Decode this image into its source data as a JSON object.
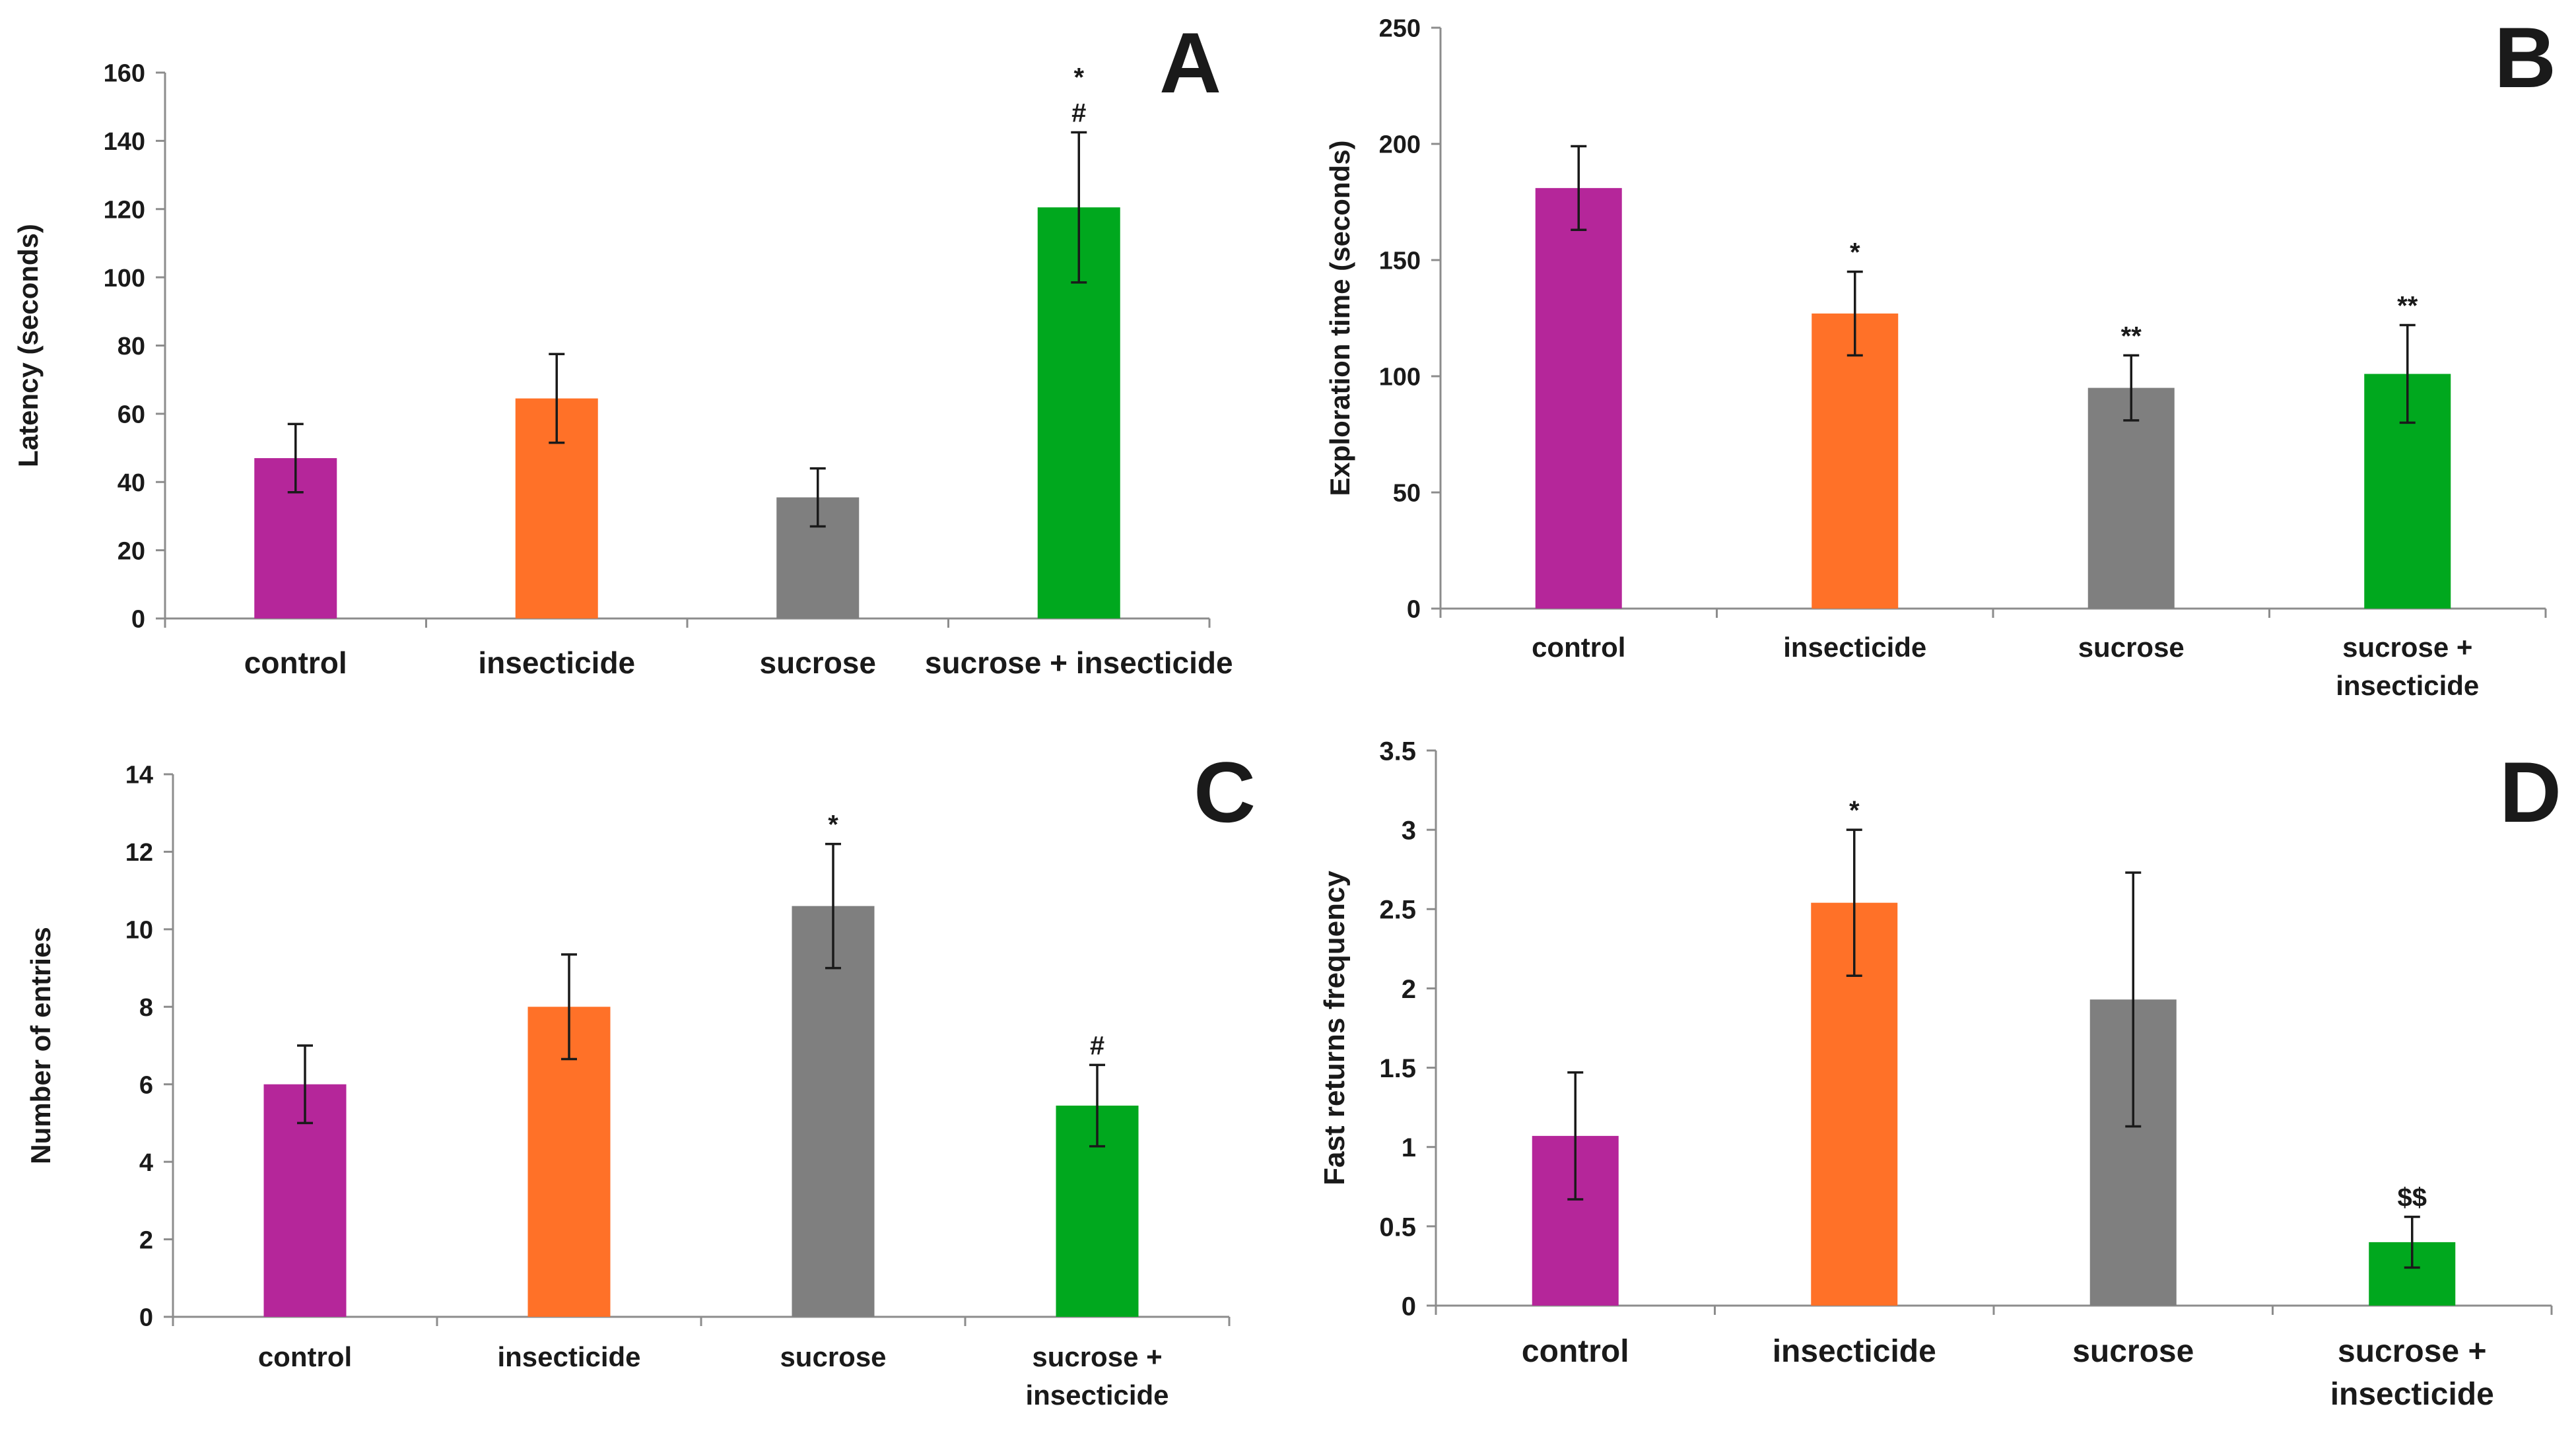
{
  "colors": {
    "control": "#B5269A",
    "insecticide": "#FF7128",
    "sucrose": "#7F7F7F",
    "sucrose_insecticide": "#00A81E",
    "axis": "#8c8c8c",
    "errorbar": "#1a1a1a"
  },
  "chart_data": [
    {
      "type": "bar",
      "panel": "A",
      "ylabel": "Latency (seconds)",
      "categories": [
        [
          "control"
        ],
        [
          "insecticide"
        ],
        [
          "sucrose"
        ],
        [
          "sucrose + insecticide"
        ]
      ],
      "values": [
        47,
        64.5,
        35.5,
        120.5
      ],
      "errors": [
        10,
        13,
        8.5,
        22
      ],
      "annotations": [
        [],
        [],
        [],
        [
          "*",
          "#"
        ]
      ],
      "ylim": [
        0,
        160
      ],
      "yticks": [
        "0",
        "20",
        "40",
        "60",
        "80",
        "100",
        "120",
        "140",
        "160"
      ]
    },
    {
      "type": "bar",
      "panel": "B",
      "ylabel": "Exploration time (seconds)",
      "categories": [
        [
          "control"
        ],
        [
          "insecticide"
        ],
        [
          "sucrose"
        ],
        [
          "sucrose +",
          "insecticide"
        ]
      ],
      "values": [
        181,
        127,
        95,
        101
      ],
      "errors": [
        18,
        18,
        14,
        21
      ],
      "annotations": [
        [],
        [
          "*"
        ],
        [
          "**"
        ],
        [
          "**"
        ]
      ],
      "ylim": [
        0,
        250
      ],
      "yticks": [
        "0",
        "50",
        "100",
        "150",
        "200",
        "250"
      ]
    },
    {
      "type": "bar",
      "panel": "C",
      "ylabel": "Number of entries",
      "categories": [
        [
          "control"
        ],
        [
          "insecticide"
        ],
        [
          "sucrose"
        ],
        [
          "sucrose +",
          "insecticide"
        ]
      ],
      "values": [
        6,
        8,
        10.6,
        5.45
      ],
      "errors": [
        1,
        1.35,
        1.6,
        1.05
      ],
      "annotations": [
        [],
        [],
        [
          "*"
        ],
        [
          "#"
        ]
      ],
      "ylim": [
        0,
        14
      ],
      "yticks": [
        "0",
        "2",
        "4",
        "6",
        "8",
        "10",
        "12",
        "14"
      ]
    },
    {
      "type": "bar",
      "panel": "D",
      "ylabel": "Fast returns frequency",
      "categories": [
        [
          "control"
        ],
        [
          "insecticide"
        ],
        [
          "sucrose"
        ],
        [
          "sucrose +",
          "insecticide"
        ]
      ],
      "values": [
        1.07,
        2.54,
        1.93,
        0.4
      ],
      "errors": [
        0.4,
        0.46,
        0.8,
        0.16
      ],
      "annotations": [
        [],
        [
          "*"
        ],
        [],
        [
          "$$"
        ]
      ],
      "ylim": [
        0,
        3.5
      ],
      "yticks": [
        "0",
        "0.5",
        "1",
        "1.5",
        "2",
        "2.5",
        "3",
        "3.5"
      ]
    }
  ]
}
